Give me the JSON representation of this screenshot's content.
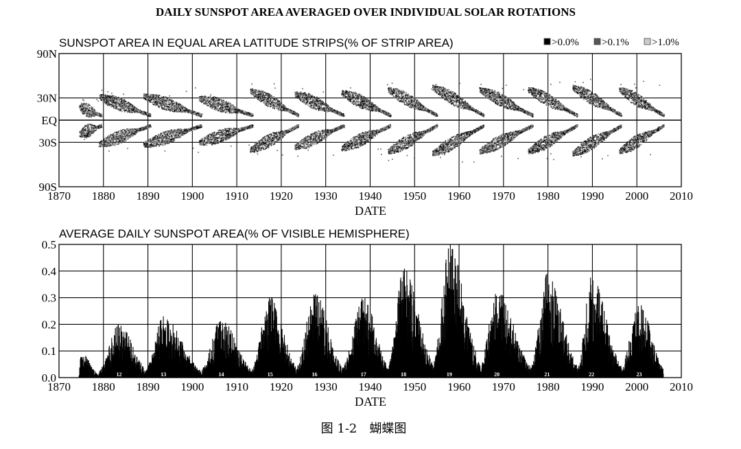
{
  "title": "DAILY SUNSPOT AREA AVERAGED OVER INDIVIDUAL SOLAR ROTATIONS",
  "caption": "图 1-2　蝴蝶图",
  "chart_data": [
    {
      "type": "scatter",
      "panel": "butterfly",
      "title": "SUNSPOT AREA IN EQUAL AREA LATITUDE STRIPS(% OF STRIP AREA)",
      "xlabel": "DATE",
      "ylabel": "",
      "xlim": [
        1870,
        2010
      ],
      "x_ticks": [
        "1870",
        "1880",
        "1890",
        "1900",
        "1910",
        "1920",
        "1930",
        "1940",
        "1950",
        "1960",
        "1970",
        "1980",
        "1990",
        "2000",
        "2010"
      ],
      "y_ticks": [
        {
          "value": 90,
          "label": "90N"
        },
        {
          "value": 30,
          "label": "30N"
        },
        {
          "value": 0,
          "label": "EQ"
        },
        {
          "value": -30,
          "label": "30S"
        },
        {
          "value": -90,
          "label": "90S"
        }
      ],
      "grid": true,
      "legend_position": "top-right",
      "legend": [
        {
          "label": ">0.0%",
          "color": "#000000"
        },
        {
          "label": ">0.1%",
          "color": "#555555"
        },
        {
          "label": ">1.0%",
          "color": "#cccccc"
        }
      ],
      "cycles": [
        {
          "start": 1874.5,
          "end": 1879.5,
          "max_lat": 18
        },
        {
          "start": 1879.0,
          "end": 1890.5,
          "max_lat": 32
        },
        {
          "start": 1889.0,
          "end": 1902.0,
          "max_lat": 33
        },
        {
          "start": 1901.5,
          "end": 1913.5,
          "max_lat": 30
        },
        {
          "start": 1913.0,
          "end": 1923.8,
          "max_lat": 40
        },
        {
          "start": 1923.0,
          "end": 1934.0,
          "max_lat": 36
        },
        {
          "start": 1933.5,
          "end": 1944.5,
          "max_lat": 38
        },
        {
          "start": 1944.0,
          "end": 1955.0,
          "max_lat": 42
        },
        {
          "start": 1954.0,
          "end": 1965.5,
          "max_lat": 45
        },
        {
          "start": 1964.5,
          "end": 1976.5,
          "max_lat": 42
        },
        {
          "start": 1975.5,
          "end": 1986.5,
          "max_lat": 42
        },
        {
          "start": 1985.5,
          "end": 1996.5,
          "max_lat": 45
        },
        {
          "start": 1996.0,
          "end": 2006.0,
          "max_lat": 42
        }
      ]
    },
    {
      "type": "bar",
      "panel": "area",
      "title": "AVERAGE DAILY SUNSPOT AREA(% OF VISIBLE HEMISPHERE)",
      "xlabel": "DATE",
      "ylabel": "",
      "xlim": [
        1870,
        2010
      ],
      "ylim": [
        0,
        0.5
      ],
      "x_ticks": [
        "1870",
        "1880",
        "1890",
        "1900",
        "1910",
        "1920",
        "1930",
        "1940",
        "1950",
        "1960",
        "1970",
        "1980",
        "1990",
        "2000",
        "2010"
      ],
      "y_ticks": [
        "0.0",
        "0.1",
        "0.2",
        "0.3",
        "0.4",
        "0.5"
      ],
      "grid": true,
      "cycles": [
        {
          "number": "",
          "peak_year": 1874.8,
          "peak_value": 0.1,
          "start": 1874.5,
          "end": 1879.0
        },
        {
          "number": "12",
          "peak_year": 1883.5,
          "peak_value": 0.2,
          "start": 1879.0,
          "end": 1890.0
        },
        {
          "number": "13",
          "peak_year": 1893.5,
          "peak_value": 0.23,
          "start": 1889.5,
          "end": 1902.0
        },
        {
          "number": "14",
          "peak_year": 1906.5,
          "peak_value": 0.22,
          "start": 1902.0,
          "end": 1913.5
        },
        {
          "number": "15",
          "peak_year": 1917.5,
          "peak_value": 0.31,
          "start": 1913.5,
          "end": 1923.5
        },
        {
          "number": "16",
          "peak_year": 1927.5,
          "peak_value": 0.32,
          "start": 1923.5,
          "end": 1933.8
        },
        {
          "number": "17",
          "peak_year": 1938.5,
          "peak_value": 0.3,
          "start": 1933.8,
          "end": 1944.2
        },
        {
          "number": "18",
          "peak_year": 1947.5,
          "peak_value": 0.41,
          "start": 1944.2,
          "end": 1954.3
        },
        {
          "number": "19",
          "peak_year": 1957.8,
          "peak_value": 0.5,
          "start": 1954.3,
          "end": 1964.8
        },
        {
          "number": "20",
          "peak_year": 1968.5,
          "peak_value": 0.33,
          "start": 1964.8,
          "end": 1976.3
        },
        {
          "number": "21",
          "peak_year": 1979.8,
          "peak_value": 0.39,
          "start": 1976.3,
          "end": 1986.8
        },
        {
          "number": "22",
          "peak_year": 1989.8,
          "peak_value": 0.38,
          "start": 1986.8,
          "end": 1996.5
        },
        {
          "number": "23",
          "peak_year": 2000.5,
          "peak_value": 0.28,
          "start": 1996.5,
          "end": 2006.0
        }
      ]
    }
  ]
}
